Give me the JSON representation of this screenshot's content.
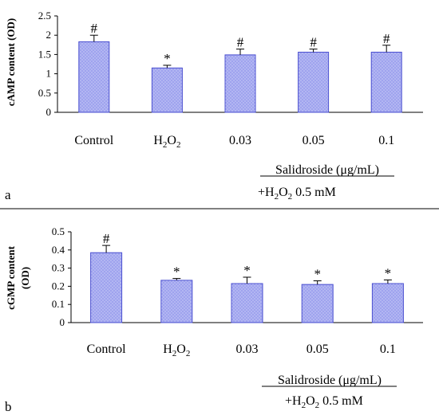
{
  "chart_data": [
    {
      "type": "bar",
      "panel": "a",
      "ylabel": "cAMP content (OD)",
      "ylim": [
        0,
        2.5
      ],
      "yticks": [
        "0",
        "0.5",
        "1",
        "1.5",
        "2",
        "2.5"
      ],
      "categories": [
        "Control",
        "H2O2",
        "0.03",
        "0.05",
        "0.1"
      ],
      "values": [
        1.83,
        1.15,
        1.49,
        1.56,
        1.56
      ],
      "errors": [
        0.17,
        0.07,
        0.15,
        0.08,
        0.18
      ],
      "significance": [
        "#",
        "*",
        "#",
        "#",
        "#"
      ],
      "group_label": "Salidroside (μg/mL)",
      "group_condition": "+H2O2 0.5 mM",
      "bar_color": "#9fa3ee",
      "bar_edge": "#4a4fd0",
      "grid": false
    },
    {
      "type": "bar",
      "panel": "b",
      "ylabel": "cGMP content (OD)",
      "ylim": [
        0,
        0.5
      ],
      "yticks": [
        "0",
        "0.1",
        "0.2",
        "0.3",
        "0.4",
        "0.5"
      ],
      "categories": [
        "Control",
        "H2O2",
        "0.03",
        "0.05",
        "0.1"
      ],
      "values": [
        0.385,
        0.233,
        0.215,
        0.21,
        0.215
      ],
      "errors": [
        0.04,
        0.01,
        0.035,
        0.02,
        0.02
      ],
      "significance": [
        "#",
        "*",
        "*",
        "*",
        "*"
      ],
      "group_label": "Salidroside (μg/mL)",
      "group_condition": "+H2O2 0.5 mM",
      "bar_color": "#9fa3ee",
      "bar_edge": "#4a4fd0",
      "grid": false
    }
  ]
}
